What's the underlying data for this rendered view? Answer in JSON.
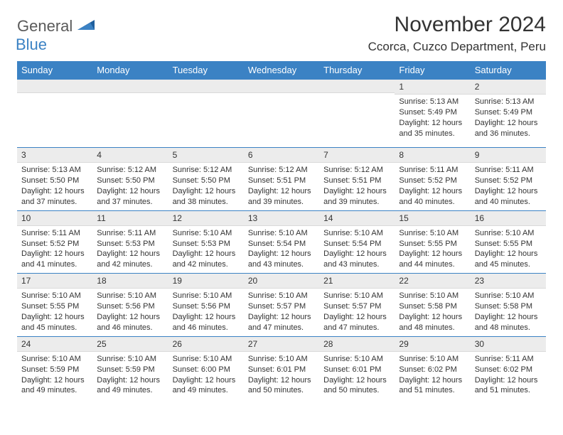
{
  "logo": {
    "general": "General",
    "blue": "Blue"
  },
  "header": {
    "title": "November 2024",
    "location": "Ccorca, Cuzco Department, Peru"
  },
  "dayNames": [
    "Sunday",
    "Monday",
    "Tuesday",
    "Wednesday",
    "Thursday",
    "Friday",
    "Saturday"
  ],
  "colors": {
    "accent": "#3b82c4",
    "stripBg": "#ececec",
    "text": "#333333",
    "white": "#ffffff"
  },
  "grid": [
    [
      null,
      null,
      null,
      null,
      null,
      {
        "n": "1",
        "sr": "5:13 AM",
        "ss": "5:49 PM",
        "dl": "12 hours and 35 minutes."
      },
      {
        "n": "2",
        "sr": "5:13 AM",
        "ss": "5:49 PM",
        "dl": "12 hours and 36 minutes."
      }
    ],
    [
      {
        "n": "3",
        "sr": "5:13 AM",
        "ss": "5:50 PM",
        "dl": "12 hours and 37 minutes."
      },
      {
        "n": "4",
        "sr": "5:12 AM",
        "ss": "5:50 PM",
        "dl": "12 hours and 37 minutes."
      },
      {
        "n": "5",
        "sr": "5:12 AM",
        "ss": "5:50 PM",
        "dl": "12 hours and 38 minutes."
      },
      {
        "n": "6",
        "sr": "5:12 AM",
        "ss": "5:51 PM",
        "dl": "12 hours and 39 minutes."
      },
      {
        "n": "7",
        "sr": "5:12 AM",
        "ss": "5:51 PM",
        "dl": "12 hours and 39 minutes."
      },
      {
        "n": "8",
        "sr": "5:11 AM",
        "ss": "5:52 PM",
        "dl": "12 hours and 40 minutes."
      },
      {
        "n": "9",
        "sr": "5:11 AM",
        "ss": "5:52 PM",
        "dl": "12 hours and 40 minutes."
      }
    ],
    [
      {
        "n": "10",
        "sr": "5:11 AM",
        "ss": "5:52 PM",
        "dl": "12 hours and 41 minutes."
      },
      {
        "n": "11",
        "sr": "5:11 AM",
        "ss": "5:53 PM",
        "dl": "12 hours and 42 minutes."
      },
      {
        "n": "12",
        "sr": "5:10 AM",
        "ss": "5:53 PM",
        "dl": "12 hours and 42 minutes."
      },
      {
        "n": "13",
        "sr": "5:10 AM",
        "ss": "5:54 PM",
        "dl": "12 hours and 43 minutes."
      },
      {
        "n": "14",
        "sr": "5:10 AM",
        "ss": "5:54 PM",
        "dl": "12 hours and 43 minutes."
      },
      {
        "n": "15",
        "sr": "5:10 AM",
        "ss": "5:55 PM",
        "dl": "12 hours and 44 minutes."
      },
      {
        "n": "16",
        "sr": "5:10 AM",
        "ss": "5:55 PM",
        "dl": "12 hours and 45 minutes."
      }
    ],
    [
      {
        "n": "17",
        "sr": "5:10 AM",
        "ss": "5:55 PM",
        "dl": "12 hours and 45 minutes."
      },
      {
        "n": "18",
        "sr": "5:10 AM",
        "ss": "5:56 PM",
        "dl": "12 hours and 46 minutes."
      },
      {
        "n": "19",
        "sr": "5:10 AM",
        "ss": "5:56 PM",
        "dl": "12 hours and 46 minutes."
      },
      {
        "n": "20",
        "sr": "5:10 AM",
        "ss": "5:57 PM",
        "dl": "12 hours and 47 minutes."
      },
      {
        "n": "21",
        "sr": "5:10 AM",
        "ss": "5:57 PM",
        "dl": "12 hours and 47 minutes."
      },
      {
        "n": "22",
        "sr": "5:10 AM",
        "ss": "5:58 PM",
        "dl": "12 hours and 48 minutes."
      },
      {
        "n": "23",
        "sr": "5:10 AM",
        "ss": "5:58 PM",
        "dl": "12 hours and 48 minutes."
      }
    ],
    [
      {
        "n": "24",
        "sr": "5:10 AM",
        "ss": "5:59 PM",
        "dl": "12 hours and 49 minutes."
      },
      {
        "n": "25",
        "sr": "5:10 AM",
        "ss": "5:59 PM",
        "dl": "12 hours and 49 minutes."
      },
      {
        "n": "26",
        "sr": "5:10 AM",
        "ss": "6:00 PM",
        "dl": "12 hours and 49 minutes."
      },
      {
        "n": "27",
        "sr": "5:10 AM",
        "ss": "6:01 PM",
        "dl": "12 hours and 50 minutes."
      },
      {
        "n": "28",
        "sr": "5:10 AM",
        "ss": "6:01 PM",
        "dl": "12 hours and 50 minutes."
      },
      {
        "n": "29",
        "sr": "5:10 AM",
        "ss": "6:02 PM",
        "dl": "12 hours and 51 minutes."
      },
      {
        "n": "30",
        "sr": "5:11 AM",
        "ss": "6:02 PM",
        "dl": "12 hours and 51 minutes."
      }
    ]
  ],
  "labels": {
    "sunrise": "Sunrise:",
    "sunset": "Sunset:",
    "daylight": "Daylight:"
  }
}
